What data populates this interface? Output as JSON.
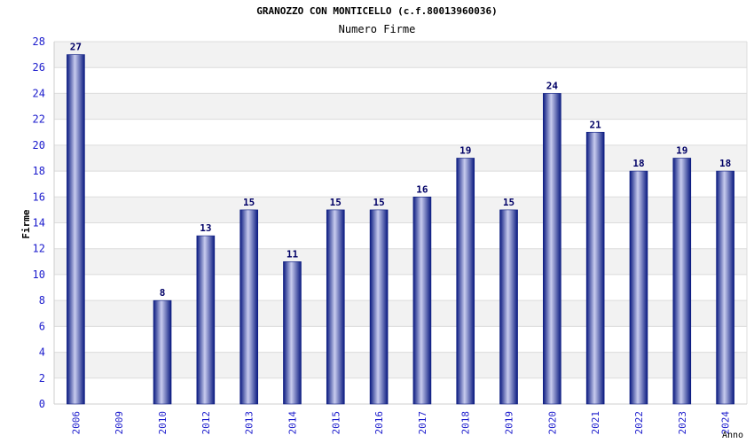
{
  "title": "GRANOZZO CON MONTICELLO (c.f.80013960036)",
  "subtitle": "Numero Firme",
  "chart_data": {
    "type": "bar",
    "categories": [
      "2006",
      "2009",
      "2010",
      "2012",
      "2013",
      "2014",
      "2015",
      "2016",
      "2017",
      "2018",
      "2019",
      "2020",
      "2021",
      "2022",
      "2023",
      "2024"
    ],
    "values": [
      27,
      0,
      8,
      13,
      15,
      11,
      15,
      15,
      16,
      19,
      15,
      24,
      21,
      18,
      19,
      18
    ],
    "data_labels": [
      "27",
      "",
      "8",
      "13",
      "15",
      "11",
      "15",
      "15",
      "16",
      "19",
      "15",
      "24",
      "21",
      "18",
      "19",
      "18"
    ],
    "xlabel": "Anno",
    "ylabel": "Firme",
    "ylim": [
      0,
      28
    ],
    "yticks": [
      "0",
      "2",
      "4",
      "6",
      "8",
      "10",
      "12",
      "14",
      "16",
      "18",
      "20",
      "22",
      "24",
      "26",
      "28"
    ],
    "grid": true,
    "colors": {
      "bar_dark": "#0a1a80",
      "bar_light": "#c8ccee",
      "band": "#f2f2f2",
      "axis_text": "#1a1acc",
      "label_text": "#000066"
    }
  }
}
